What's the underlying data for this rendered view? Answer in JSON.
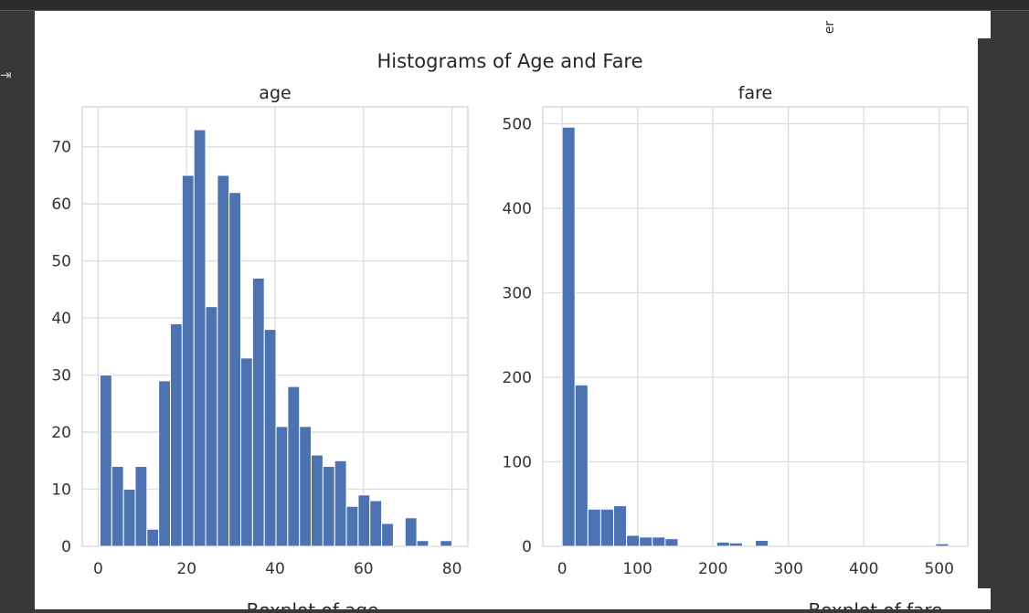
{
  "figure": {
    "title": "Histograms of Age and Fare",
    "cropped_top_label": "er",
    "bottom_labels": [
      "Boxplot of age",
      "Boxplot of fare"
    ],
    "bar_color": "#4c72b0"
  },
  "gutter": {
    "icon": "output-toggle-icon"
  },
  "chart_data": [
    {
      "type": "bar",
      "title": "age",
      "xlabel": "",
      "ylabel": "",
      "xlim": [
        0,
        80
      ],
      "ylim": [
        0,
        77
      ],
      "xticks": [
        0,
        20,
        40,
        60,
        80
      ],
      "yticks": [
        0,
        10,
        20,
        30,
        40,
        50,
        60,
        70
      ],
      "bin_start": 0.42,
      "bin_width": 2.653,
      "values": [
        30,
        14,
        10,
        14,
        3,
        29,
        39,
        65,
        73,
        42,
        65,
        62,
        33,
        47,
        38,
        21,
        28,
        21,
        16,
        14,
        15,
        7,
        9,
        8,
        4,
        0,
        5,
        1,
        0,
        1
      ],
      "grid": true
    },
    {
      "type": "bar",
      "title": "fare",
      "xlabel": "",
      "ylabel": "",
      "xlim": [
        0,
        512.33
      ],
      "ylim": [
        0,
        520
      ],
      "xticks": [
        0,
        100,
        200,
        300,
        400,
        500
      ],
      "yticks": [
        0,
        100,
        200,
        300,
        400,
        500
      ],
      "bin_start": 0,
      "bin_width": 17.08,
      "values": [
        496,
        191,
        44,
        44,
        48,
        13,
        11,
        11,
        9,
        0,
        0,
        0,
        5,
        4,
        0,
        7,
        0,
        0,
        0,
        0,
        0,
        0,
        0,
        0,
        0,
        0,
        0,
        0,
        0,
        3
      ],
      "grid": true
    }
  ]
}
